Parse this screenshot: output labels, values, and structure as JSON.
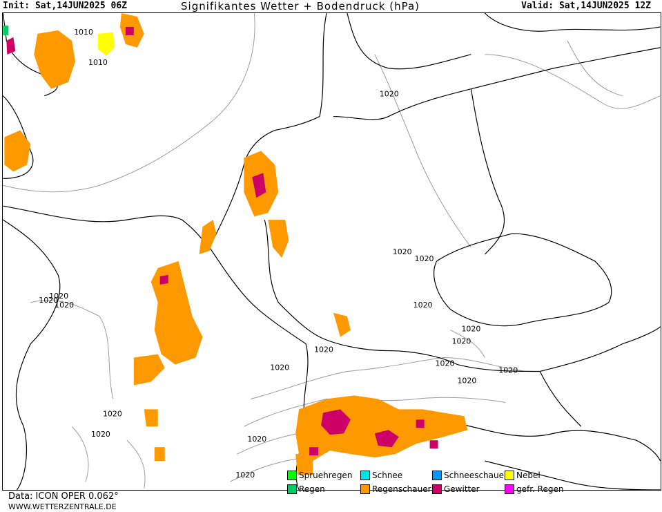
{
  "header": {
    "init": "Init: Sat,14JUN2025 06Z",
    "title": "Signifikantes Wetter + Bodendruck (hPa)",
    "valid": "Valid: Sat,14JUN2025 12Z"
  },
  "footer": {
    "data": "Data: ICON OPER 0.062°",
    "site": "WWW.WETTERZENTRALE.DE"
  },
  "legend": [
    {
      "label": "Spruehregen",
      "color": "#00ff00"
    },
    {
      "label": "Regen",
      "color": "#00cc66"
    },
    {
      "label": "Schnee",
      "color": "#00e5e5"
    },
    {
      "label": "Regenschauer",
      "color": "#ff9900"
    },
    {
      "label": "Schneeschauer",
      "color": "#0099ff"
    },
    {
      "label": "Gewitter",
      "color": "#cc0066"
    },
    {
      "label": "Nebel",
      "color": "#ffff00"
    },
    {
      "label": "gefr. Regen",
      "color": "#ff00ff"
    }
  ],
  "isobars": {
    "l1010a": "1010",
    "l1010b": "1010",
    "l1020a": "1020",
    "l1020b": "1020",
    "l1020c": "1020",
    "l1020d": "1020",
    "l1020e": "1020",
    "l1020f": "1020",
    "l1020g": "1020",
    "l1020h": "1020",
    "l1020i": "1020",
    "l1020j": "1020",
    "l1020k": "1020",
    "l1020l": "1020",
    "l1020m": "1020",
    "l1020n": "1020",
    "l1020o": "1020",
    "l1020p": "1020",
    "l1020q": "1020",
    "l1020r": "1020"
  }
}
